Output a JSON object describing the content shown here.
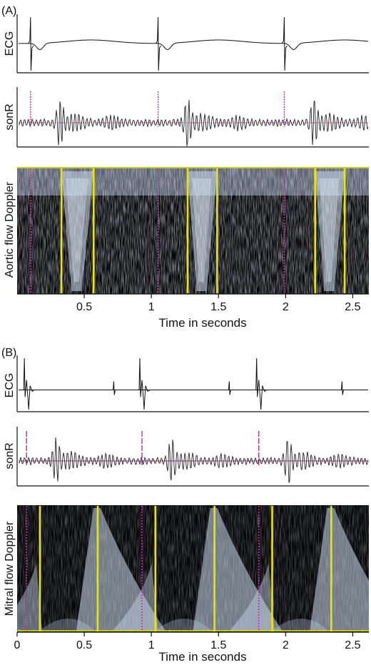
{
  "chart_data": {
    "type": "line",
    "title": "",
    "panels": [
      {
        "id": "A",
        "panel_label": "(A)",
        "xlim": [
          0,
          2.62
        ],
        "x_ticks": [
          0.5,
          1,
          1.5,
          2,
          2.5
        ],
        "x_tick_labels": [
          "0.5",
          "1",
          "1.5",
          "2",
          "2.5"
        ],
        "xlabel": "Time in seconds",
        "rows": [
          {
            "ylabel": "ECG",
            "kind": "signal",
            "series": "ecg",
            "r_peaks_s": [
              0.1,
              1.05,
              1.99
            ],
            "baseline_level": 0.55
          },
          {
            "ylabel": "sonR",
            "kind": "signal",
            "series": "sonR",
            "markers_s": [
              0.1,
              1.05,
              1.99
            ]
          },
          {
            "ylabel": "Aortic flow Doppler",
            "kind": "doppler",
            "flow_windows_s": [
              [
                0.33,
                0.57
              ],
              [
                1.27,
                1.49
              ],
              [
                2.22,
                2.44
              ]
            ],
            "yellow_lines_s": [
              0.33,
              0.57,
              1.27,
              1.49,
              2.22,
              2.44
            ],
            "magenta_lines_s": [
              0.1,
              1.05,
              1.99
            ]
          }
        ]
      },
      {
        "id": "B",
        "panel_label": "(B)",
        "xlim": [
          0,
          2.62
        ],
        "x_ticks": [
          0,
          0.5,
          1,
          1.5,
          2,
          2.5
        ],
        "x_tick_labels": [
          "0",
          "0.5",
          "1",
          "1.5",
          "2",
          "2.5"
        ],
        "xlabel": "Time in seconds",
        "rows": [
          {
            "ylabel": "ECG",
            "kind": "signal",
            "series": "ecg_paced",
            "r_peaks_s": [
              0.07,
              0.93,
              1.8
            ],
            "p_spikes_s": [
              0.72,
              1.58,
              2.42
            ]
          },
          {
            "ylabel": "sonR",
            "kind": "signal",
            "series": "sonR",
            "markers_s": [
              0.07,
              0.93,
              1.8
            ]
          },
          {
            "ylabel": "Mitral flow Doppler",
            "kind": "doppler",
            "flow_windows_s": [
              [
                0.17,
                0.6
              ],
              [
                1.03,
                1.47
              ],
              [
                1.9,
                2.34
              ]
            ],
            "yellow_lines_s": [
              0.17,
              0.6,
              1.03,
              1.47,
              1.9,
              2.34
            ],
            "magenta_lines_s": [
              0.07,
              0.93,
              1.8
            ]
          }
        ]
      }
    ]
  },
  "colors": {
    "yellow_marker": "#e9e600",
    "magenta_marker": "#c0309a",
    "signal_line": "#111111",
    "doppler_background": "#050508",
    "doppler_flow": "#c8d8ea"
  }
}
